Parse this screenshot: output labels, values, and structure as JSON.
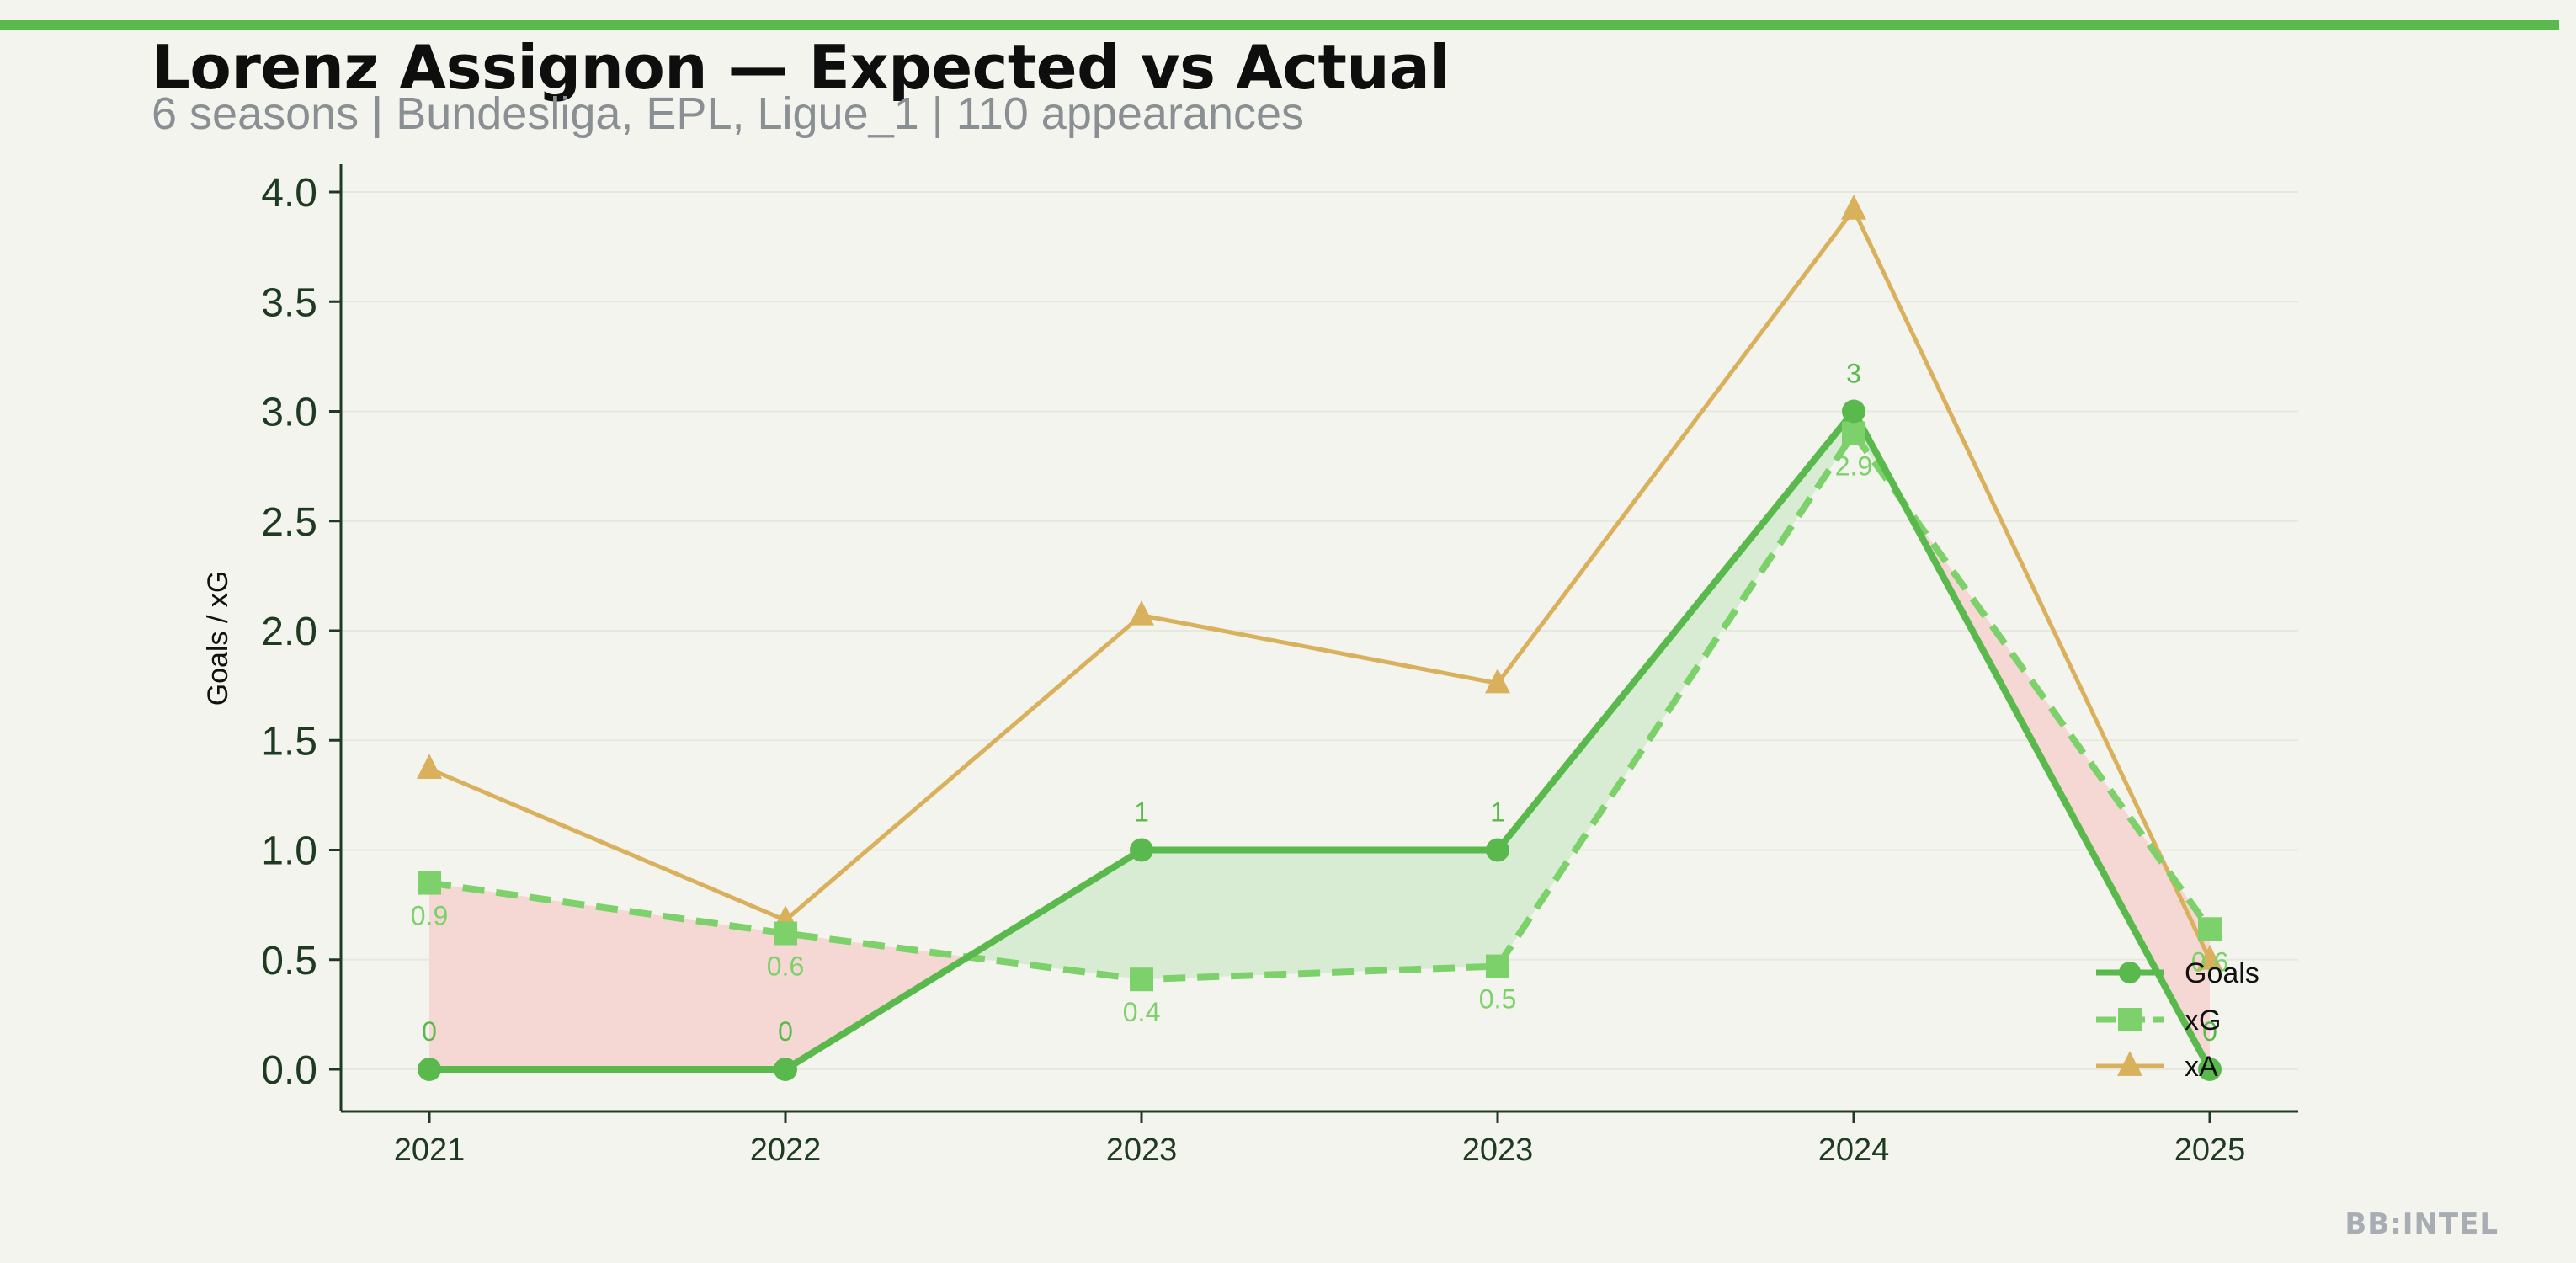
{
  "header": {
    "title": "Lorenz Assignon — Expected vs Actual",
    "subtitle": "6 seasons | Bundesliga, EPL, Ligue_1 | 110 appearances"
  },
  "watermark": "BB:INTEL",
  "colors": {
    "goals": "#5ab94c",
    "xg": "#7dd16a",
    "xa": "#d9b05c",
    "over_fill": "#d7ecd2",
    "under_fill": "#f5d8d3",
    "axis": "#1e3b22",
    "background": "#f4f4ee"
  },
  "chart_data": {
    "type": "line",
    "categories": [
      "2021",
      "2022",
      "2023",
      "2023",
      "2024",
      "2025"
    ],
    "ylabel": "Goals / xG",
    "xlabel": "",
    "ylim": [
      -0.2,
      4.1
    ],
    "yticks": [
      "0.0",
      "0.5",
      "1.0",
      "1.5",
      "2.0",
      "2.5",
      "3.0",
      "3.5",
      "4.0"
    ],
    "grid": "horizontal-faint",
    "legend_position": "bottom-right",
    "series": [
      {
        "name": "Goals",
        "values": [
          0,
          0,
          1,
          1,
          3,
          0
        ],
        "labels": [
          "0",
          "0",
          "1",
          "1",
          "3",
          "0"
        ],
        "style": "solid",
        "marker": "circle"
      },
      {
        "name": "xG",
        "values": [
          0.85,
          0.62,
          0.41,
          0.47,
          2.9,
          0.64
        ],
        "labels": [
          "0.9",
          "0.6",
          "0.4",
          "0.5",
          "2.9",
          "0.6"
        ],
        "style": "dashed",
        "marker": "square"
      },
      {
        "name": "xA",
        "values": [
          1.37,
          0.68,
          2.07,
          1.76,
          3.92,
          0.5
        ],
        "style": "solid",
        "marker": "triangle"
      }
    ]
  }
}
